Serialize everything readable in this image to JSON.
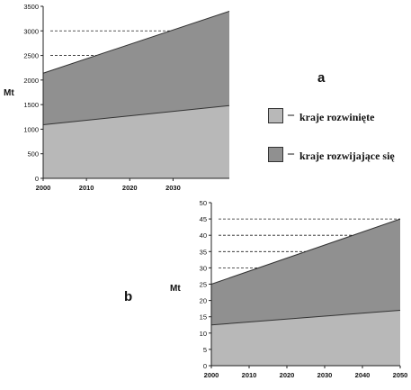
{
  "legend": {
    "dash": "–",
    "developed": "kraje rozwinięte",
    "developing": "kraje rozwijające się",
    "developed_color": "#b8b8b8",
    "developing_color": "#909090"
  },
  "chart_data": [
    {
      "id": "a",
      "type": "area",
      "panel_label": "a",
      "ylabel": "Mt",
      "xlabel": "",
      "title": "",
      "x_ticks": [
        2000,
        2010,
        2020,
        2030
      ],
      "x_range": [
        2000,
        2043
      ],
      "y_ticks": [
        0,
        500,
        1000,
        1500,
        2000,
        2500,
        3000,
        3500
      ],
      "ylim": [
        0,
        3500
      ],
      "stacked": true,
      "grid": false,
      "series": [
        {
          "name": "kraje rozwinięte",
          "x": [
            2000,
            2043
          ],
          "values": [
            1090,
            1480
          ],
          "color": "#b8b8b8"
        },
        {
          "name": "kraje rozwijające się",
          "x": [
            2000,
            2043
          ],
          "values": [
            1050,
            1920
          ],
          "color": "#909090"
        }
      ],
      "reference_lines": [
        2500,
        3000
      ]
    },
    {
      "id": "b",
      "type": "area",
      "panel_label": "b",
      "ylabel": "Mt",
      "xlabel": "",
      "title": "",
      "x_ticks": [
        2000,
        2010,
        2020,
        2030,
        2040,
        2050
      ],
      "x_range": [
        2000,
        2050
      ],
      "y_ticks": [
        0,
        5,
        10,
        15,
        20,
        25,
        30,
        35,
        40,
        45,
        50
      ],
      "ylim": [
        0,
        50
      ],
      "stacked": true,
      "grid": false,
      "series": [
        {
          "name": "kraje rozwinięte",
          "x": [
            2000,
            2050
          ],
          "values": [
            12.5,
            17
          ],
          "color": "#b8b8b8"
        },
        {
          "name": "kraje rozwijające się",
          "x": [
            2000,
            2050
          ],
          "values": [
            12.5,
            28
          ],
          "color": "#909090"
        }
      ],
      "reference_lines": [
        30,
        35,
        40,
        45
      ]
    }
  ]
}
